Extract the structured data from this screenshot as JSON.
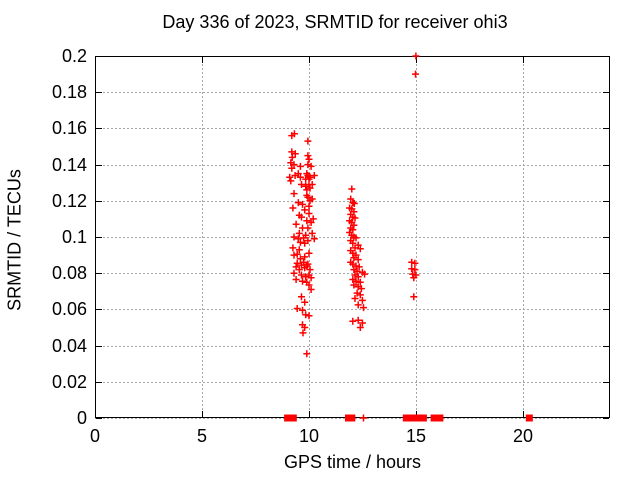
{
  "chart_data": {
    "type": "scatter",
    "title": "Day 336 of 2023, SRMTID for receiver ohi3",
    "xlabel": "GPS time / hours",
    "ylabel": "SRMTID / TECUs",
    "xlim": [
      0,
      24.07
    ],
    "ylim": [
      0,
      0.2
    ],
    "xticks": {
      "values": [
        0,
        5,
        10,
        15,
        20
      ],
      "labels": [
        "0",
        "5",
        "10",
        "15",
        "20"
      ]
    },
    "yticks": {
      "values": [
        0,
        0.02,
        0.04,
        0.06,
        0.08,
        0.1,
        0.12,
        0.14,
        0.16,
        0.18,
        0.2
      ],
      "labels": [
        "0",
        "0.02",
        "0.04",
        "0.06",
        "0.08",
        "0.1",
        "0.12",
        "0.14",
        "0.16",
        "0.18",
        "0.2"
      ]
    },
    "grid": true,
    "legend": "none",
    "grid_color": "#a6a6a6",
    "marker_color": "#ff0000",
    "series": [
      {
        "name": "srmtid-values",
        "marker": "plus",
        "color": "#ff0000",
        "points": [
          [
            9.2,
            0.156
          ],
          [
            9.32,
            0.157
          ],
          [
            9.95,
            0.153
          ],
          [
            9.2,
            0.147
          ],
          [
            9.36,
            0.146
          ],
          [
            9.22,
            0.144
          ],
          [
            9.95,
            0.145
          ],
          [
            10.0,
            0.143
          ],
          [
            9.15,
            0.141
          ],
          [
            9.3,
            0.14
          ],
          [
            9.6,
            0.139
          ],
          [
            9.95,
            0.14
          ],
          [
            10.1,
            0.139
          ],
          [
            9.2,
            0.138
          ],
          [
            9.1,
            0.133
          ],
          [
            9.35,
            0.134
          ],
          [
            9.6,
            0.133
          ],
          [
            9.85,
            0.132
          ],
          [
            10.05,
            0.133
          ],
          [
            10.25,
            0.134
          ],
          [
            9.5,
            0.135
          ],
          [
            9.9,
            0.135
          ],
          [
            9.95,
            0.134
          ],
          [
            10.0,
            0.132
          ],
          [
            9.15,
            0.131
          ],
          [
            9.65,
            0.129
          ],
          [
            9.85,
            0.128
          ],
          [
            10.0,
            0.129
          ],
          [
            10.15,
            0.129
          ],
          [
            9.9,
            0.126
          ],
          [
            10.05,
            0.127
          ],
          [
            9.3,
            0.124
          ],
          [
            9.95,
            0.122
          ],
          [
            10.15,
            0.121
          ],
          [
            9.5,
            0.119
          ],
          [
            9.7,
            0.118
          ],
          [
            10.0,
            0.117
          ],
          [
            9.25,
            0.116
          ],
          [
            10.05,
            0.12
          ],
          [
            9.9,
            0.123
          ],
          [
            9.8,
            0.115
          ],
          [
            10.0,
            0.113
          ],
          [
            9.65,
            0.111
          ],
          [
            9.9,
            0.109
          ],
          [
            10.1,
            0.108
          ],
          [
            9.4,
            0.107
          ],
          [
            9.55,
            0.112
          ],
          [
            10.2,
            0.11
          ],
          [
            9.7,
            0.105
          ],
          [
            9.95,
            0.105
          ],
          [
            9.55,
            0.102
          ],
          [
            9.85,
            0.101
          ],
          [
            10.15,
            0.102
          ],
          [
            9.3,
            0.1
          ],
          [
            9.5,
            0.099
          ],
          [
            9.75,
            0.0995
          ],
          [
            9.95,
            0.098
          ],
          [
            10.25,
            0.099
          ],
          [
            9.6,
            0.097
          ],
          [
            9.8,
            0.0965
          ],
          [
            9.25,
            0.094
          ],
          [
            9.55,
            0.093
          ],
          [
            10.0,
            0.091
          ],
          [
            9.3,
            0.09
          ],
          [
            9.6,
            0.088
          ],
          [
            9.8,
            0.089
          ],
          [
            9.45,
            0.0905
          ],
          [
            9.45,
            0.0855
          ],
          [
            9.75,
            0.086
          ],
          [
            9.95,
            0.085
          ],
          [
            9.4,
            0.0835
          ],
          [
            9.9,
            0.084
          ],
          [
            9.55,
            0.082
          ],
          [
            9.65,
            0.0845
          ],
          [
            9.8,
            0.083
          ],
          [
            10.05,
            0.082
          ],
          [
            9.3,
            0.08
          ],
          [
            9.65,
            0.079
          ],
          [
            9.85,
            0.078
          ],
          [
            10.0,
            0.079
          ],
          [
            10.1,
            0.0775
          ],
          [
            9.4,
            0.0765
          ],
          [
            9.7,
            0.0755
          ],
          [
            9.9,
            0.075
          ],
          [
            10.1,
            0.071
          ],
          [
            10.0,
            0.0735
          ],
          [
            9.65,
            0.067
          ],
          [
            9.8,
            0.064
          ],
          [
            9.45,
            0.0605
          ],
          [
            9.7,
            0.0595
          ],
          [
            9.85,
            0.057
          ],
          [
            10.0,
            0.0565
          ],
          [
            9.7,
            0.0515
          ],
          [
            9.8,
            0.05
          ],
          [
            9.72,
            0.047
          ],
          [
            9.9,
            0.0355
          ],
          [
            12.0,
            0.1265
          ],
          [
            11.95,
            0.121
          ],
          [
            12.05,
            0.119
          ],
          [
            12.12,
            0.1185
          ],
          [
            11.9,
            0.116
          ],
          [
            12.0,
            0.1155
          ],
          [
            12.1,
            0.114
          ],
          [
            11.95,
            0.1125
          ],
          [
            12.05,
            0.111
          ],
          [
            12.15,
            0.1105
          ],
          [
            11.9,
            0.109
          ],
          [
            12.0,
            0.108
          ],
          [
            12.1,
            0.1065
          ],
          [
            11.95,
            0.105
          ],
          [
            12.05,
            0.104
          ],
          [
            11.9,
            0.1025
          ],
          [
            12.0,
            0.101
          ],
          [
            12.1,
            0.1
          ],
          [
            12.2,
            0.0995
          ],
          [
            11.95,
            0.098
          ],
          [
            12.05,
            0.0965
          ],
          [
            12.3,
            0.0955
          ],
          [
            12.15,
            0.094
          ],
          [
            12.4,
            0.0935
          ],
          [
            11.95,
            0.0925
          ],
          [
            12.05,
            0.091
          ],
          [
            12.2,
            0.09
          ],
          [
            12.1,
            0.0885
          ],
          [
            12.3,
            0.0875
          ],
          [
            11.95,
            0.086
          ],
          [
            12.05,
            0.085
          ],
          [
            12.2,
            0.084
          ],
          [
            12.35,
            0.0835
          ],
          [
            12.1,
            0.082
          ],
          [
            12.25,
            0.081
          ],
          [
            12.5,
            0.0805
          ],
          [
            12.6,
            0.0795
          ],
          [
            12.15,
            0.079
          ],
          [
            12.3,
            0.078
          ],
          [
            12.05,
            0.0765
          ],
          [
            12.2,
            0.0755
          ],
          [
            12.4,
            0.075
          ],
          [
            12.1,
            0.0735
          ],
          [
            12.3,
            0.0725
          ],
          [
            12.45,
            0.0715
          ],
          [
            12.25,
            0.069
          ],
          [
            12.4,
            0.068
          ],
          [
            12.15,
            0.066
          ],
          [
            12.5,
            0.065
          ],
          [
            12.3,
            0.0625
          ],
          [
            12.55,
            0.061
          ],
          [
            12.05,
            0.0535
          ],
          [
            12.3,
            0.054
          ],
          [
            12.5,
            0.0525
          ],
          [
            12.4,
            0.05
          ],
          [
            15.0,
            0.2
          ],
          [
            14.98,
            0.19
          ],
          [
            14.8,
            0.086
          ],
          [
            14.95,
            0.0855
          ],
          [
            14.8,
            0.0825
          ],
          [
            14.95,
            0.082
          ],
          [
            14.85,
            0.0795
          ],
          [
            15.0,
            0.079
          ],
          [
            14.9,
            0.0775
          ],
          [
            14.9,
            0.067
          ],
          [
            12.55,
            0
          ]
        ]
      },
      {
        "name": "zero-flags",
        "marker": "filled-square",
        "color": "#ff0000",
        "points": [
          [
            9.0,
            0
          ],
          [
            9.12,
            0
          ],
          [
            9.27,
            0
          ],
          [
            11.85,
            0
          ],
          [
            12.0,
            0
          ],
          [
            14.55,
            0
          ],
          [
            14.7,
            0
          ],
          [
            14.95,
            0
          ],
          [
            15.08,
            0
          ],
          [
            15.35,
            0
          ],
          [
            15.85,
            0
          ],
          [
            16.0,
            0
          ],
          [
            16.12,
            0
          ],
          [
            20.3,
            0
          ]
        ]
      }
    ]
  }
}
